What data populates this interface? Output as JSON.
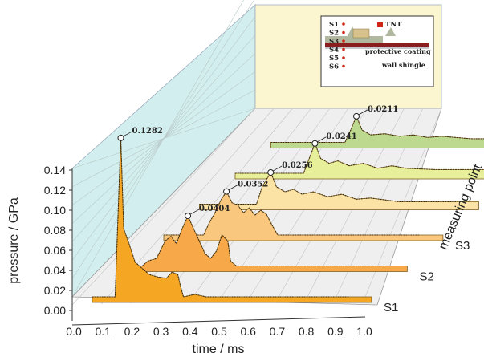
{
  "chart_data": {
    "type": "area",
    "xlabel": "time / ms",
    "ylabel": "pressure / GPa",
    "zlabel": "measuring point",
    "xlim": [
      0.0,
      1.0
    ],
    "ylim": [
      0.0,
      0.14
    ],
    "x_ticks": [
      "0.0",
      "0.1",
      "0.2",
      "0.3",
      "0.4",
      "0.5",
      "0.6",
      "0.7",
      "0.8",
      "0.9",
      "1.0"
    ],
    "y_ticks": [
      "0.00",
      "0.02",
      "0.04",
      "0.06",
      "0.08",
      "0.10",
      "0.12",
      "0.14"
    ],
    "grid": true,
    "series": [
      {
        "name": "S1",
        "color": "#f5a623",
        "peak_label": "0.1282",
        "peak_time": 0.1,
        "peak": 0.1282,
        "points": [
          [
            0.0,
            0.0
          ],
          [
            0.08,
            0.0
          ],
          [
            0.1,
            0.1282
          ],
          [
            0.11,
            0.055
          ],
          [
            0.13,
            0.042
          ],
          [
            0.15,
            0.028
          ],
          [
            0.17,
            0.024
          ],
          [
            0.2,
            0.018
          ],
          [
            0.23,
            0.016
          ],
          [
            0.26,
            0.015
          ],
          [
            0.28,
            0.02
          ],
          [
            0.3,
            0.018
          ],
          [
            0.31,
            0.008
          ],
          [
            0.32,
            0.0
          ],
          [
            0.36,
            0.002
          ],
          [
            0.4,
            0.0
          ],
          [
            0.6,
            0.0
          ],
          [
            0.9,
            0.0
          ]
        ]
      },
      {
        "name": "S2",
        "color": "#f7a94a",
        "peak_label": "0.0404",
        "peak_time": 0.21,
        "peak": 0.0404,
        "points": [
          [
            0.0,
            0.0
          ],
          [
            0.05,
            0.0
          ],
          [
            0.07,
            0.004
          ],
          [
            0.1,
            0.006
          ],
          [
            0.13,
            0.02
          ],
          [
            0.15,
            0.024
          ],
          [
            0.17,
            0.018
          ],
          [
            0.19,
            0.03
          ],
          [
            0.21,
            0.0404
          ],
          [
            0.23,
            0.03
          ],
          [
            0.25,
            0.02
          ],
          [
            0.27,
            0.01
          ],
          [
            0.29,
            0.006
          ],
          [
            0.31,
            0.012
          ],
          [
            0.33,
            0.025
          ],
          [
            0.35,
            0.02
          ],
          [
            0.36,
            0.004
          ],
          [
            0.38,
            0.0
          ],
          [
            0.6,
            0.0
          ],
          [
            0.9,
            0.0
          ]
        ]
      },
      {
        "name": "S3",
        "color": "#f9c77e",
        "peak_label": "0.0352",
        "peak_time": 0.22,
        "peak": 0.0352,
        "points": [
          [
            0.0,
            0.0
          ],
          [
            0.14,
            0.0
          ],
          [
            0.16,
            0.01
          ],
          [
            0.18,
            0.018
          ],
          [
            0.2,
            0.028
          ],
          [
            0.22,
            0.0352
          ],
          [
            0.24,
            0.026
          ],
          [
            0.26,
            0.024
          ],
          [
            0.28,
            0.018
          ],
          [
            0.3,
            0.022
          ],
          [
            0.32,
            0.016
          ],
          [
            0.34,
            0.02
          ],
          [
            0.36,
            0.017
          ],
          [
            0.38,
            0.008
          ],
          [
            0.4,
            0.0
          ],
          [
            0.6,
            0.0
          ],
          [
            0.9,
            0.0
          ]
        ]
      },
      {
        "name": "S4",
        "color": "#fbe3a6",
        "peak_label": "0.0256",
        "peak_time": 0.25,
        "peak": 0.0256,
        "points": [
          [
            0.0,
            0.0
          ],
          [
            0.2,
            0.0
          ],
          [
            0.22,
            0.014
          ],
          [
            0.25,
            0.0256
          ],
          [
            0.27,
            0.014
          ],
          [
            0.3,
            0.01
          ],
          [
            0.33,
            0.012
          ],
          [
            0.36,
            0.008
          ],
          [
            0.4,
            0.01
          ],
          [
            0.45,
            0.006
          ],
          [
            0.5,
            0.008
          ],
          [
            0.55,
            0.004
          ],
          [
            0.6,
            0.005
          ],
          [
            0.7,
            0.002
          ],
          [
            0.9,
            0.002
          ]
        ]
      },
      {
        "name": "S5",
        "color": "#e8ef9a",
        "peak_label": "0.0241",
        "peak_time": 0.28,
        "peak": 0.0241,
        "points": [
          [
            0.0,
            0.0
          ],
          [
            0.24,
            0.0
          ],
          [
            0.26,
            0.012
          ],
          [
            0.28,
            0.0241
          ],
          [
            0.3,
            0.012
          ],
          [
            0.33,
            0.008
          ],
          [
            0.36,
            0.01
          ],
          [
            0.4,
            0.006
          ],
          [
            0.45,
            0.008
          ],
          [
            0.5,
            0.004
          ],
          [
            0.55,
            0.006
          ],
          [
            0.6,
            0.004
          ],
          [
            0.7,
            0.003
          ],
          [
            0.9,
            0.003
          ]
        ]
      },
      {
        "name": "S6",
        "color": "#bcd98f",
        "peak_label": "0.0211",
        "peak_time": 0.3,
        "peak": 0.0211,
        "points": [
          [
            0.0,
            0.0
          ],
          [
            0.26,
            0.0
          ],
          [
            0.28,
            0.01
          ],
          [
            0.3,
            0.0211
          ],
          [
            0.32,
            0.01
          ],
          [
            0.35,
            0.006
          ],
          [
            0.4,
            0.007
          ],
          [
            0.45,
            0.005
          ],
          [
            0.5,
            0.006
          ],
          [
            0.55,
            0.004
          ],
          [
            0.6,
            0.005
          ],
          [
            0.7,
            0.003
          ],
          [
            0.9,
            0.003
          ]
        ]
      }
    ]
  },
  "inset": {
    "labels": [
      "S1",
      "S2",
      "S3",
      "S4",
      "S5",
      "S6"
    ],
    "tnt": "TNT",
    "coating": "protective coating",
    "shingle": "wall shingle"
  }
}
